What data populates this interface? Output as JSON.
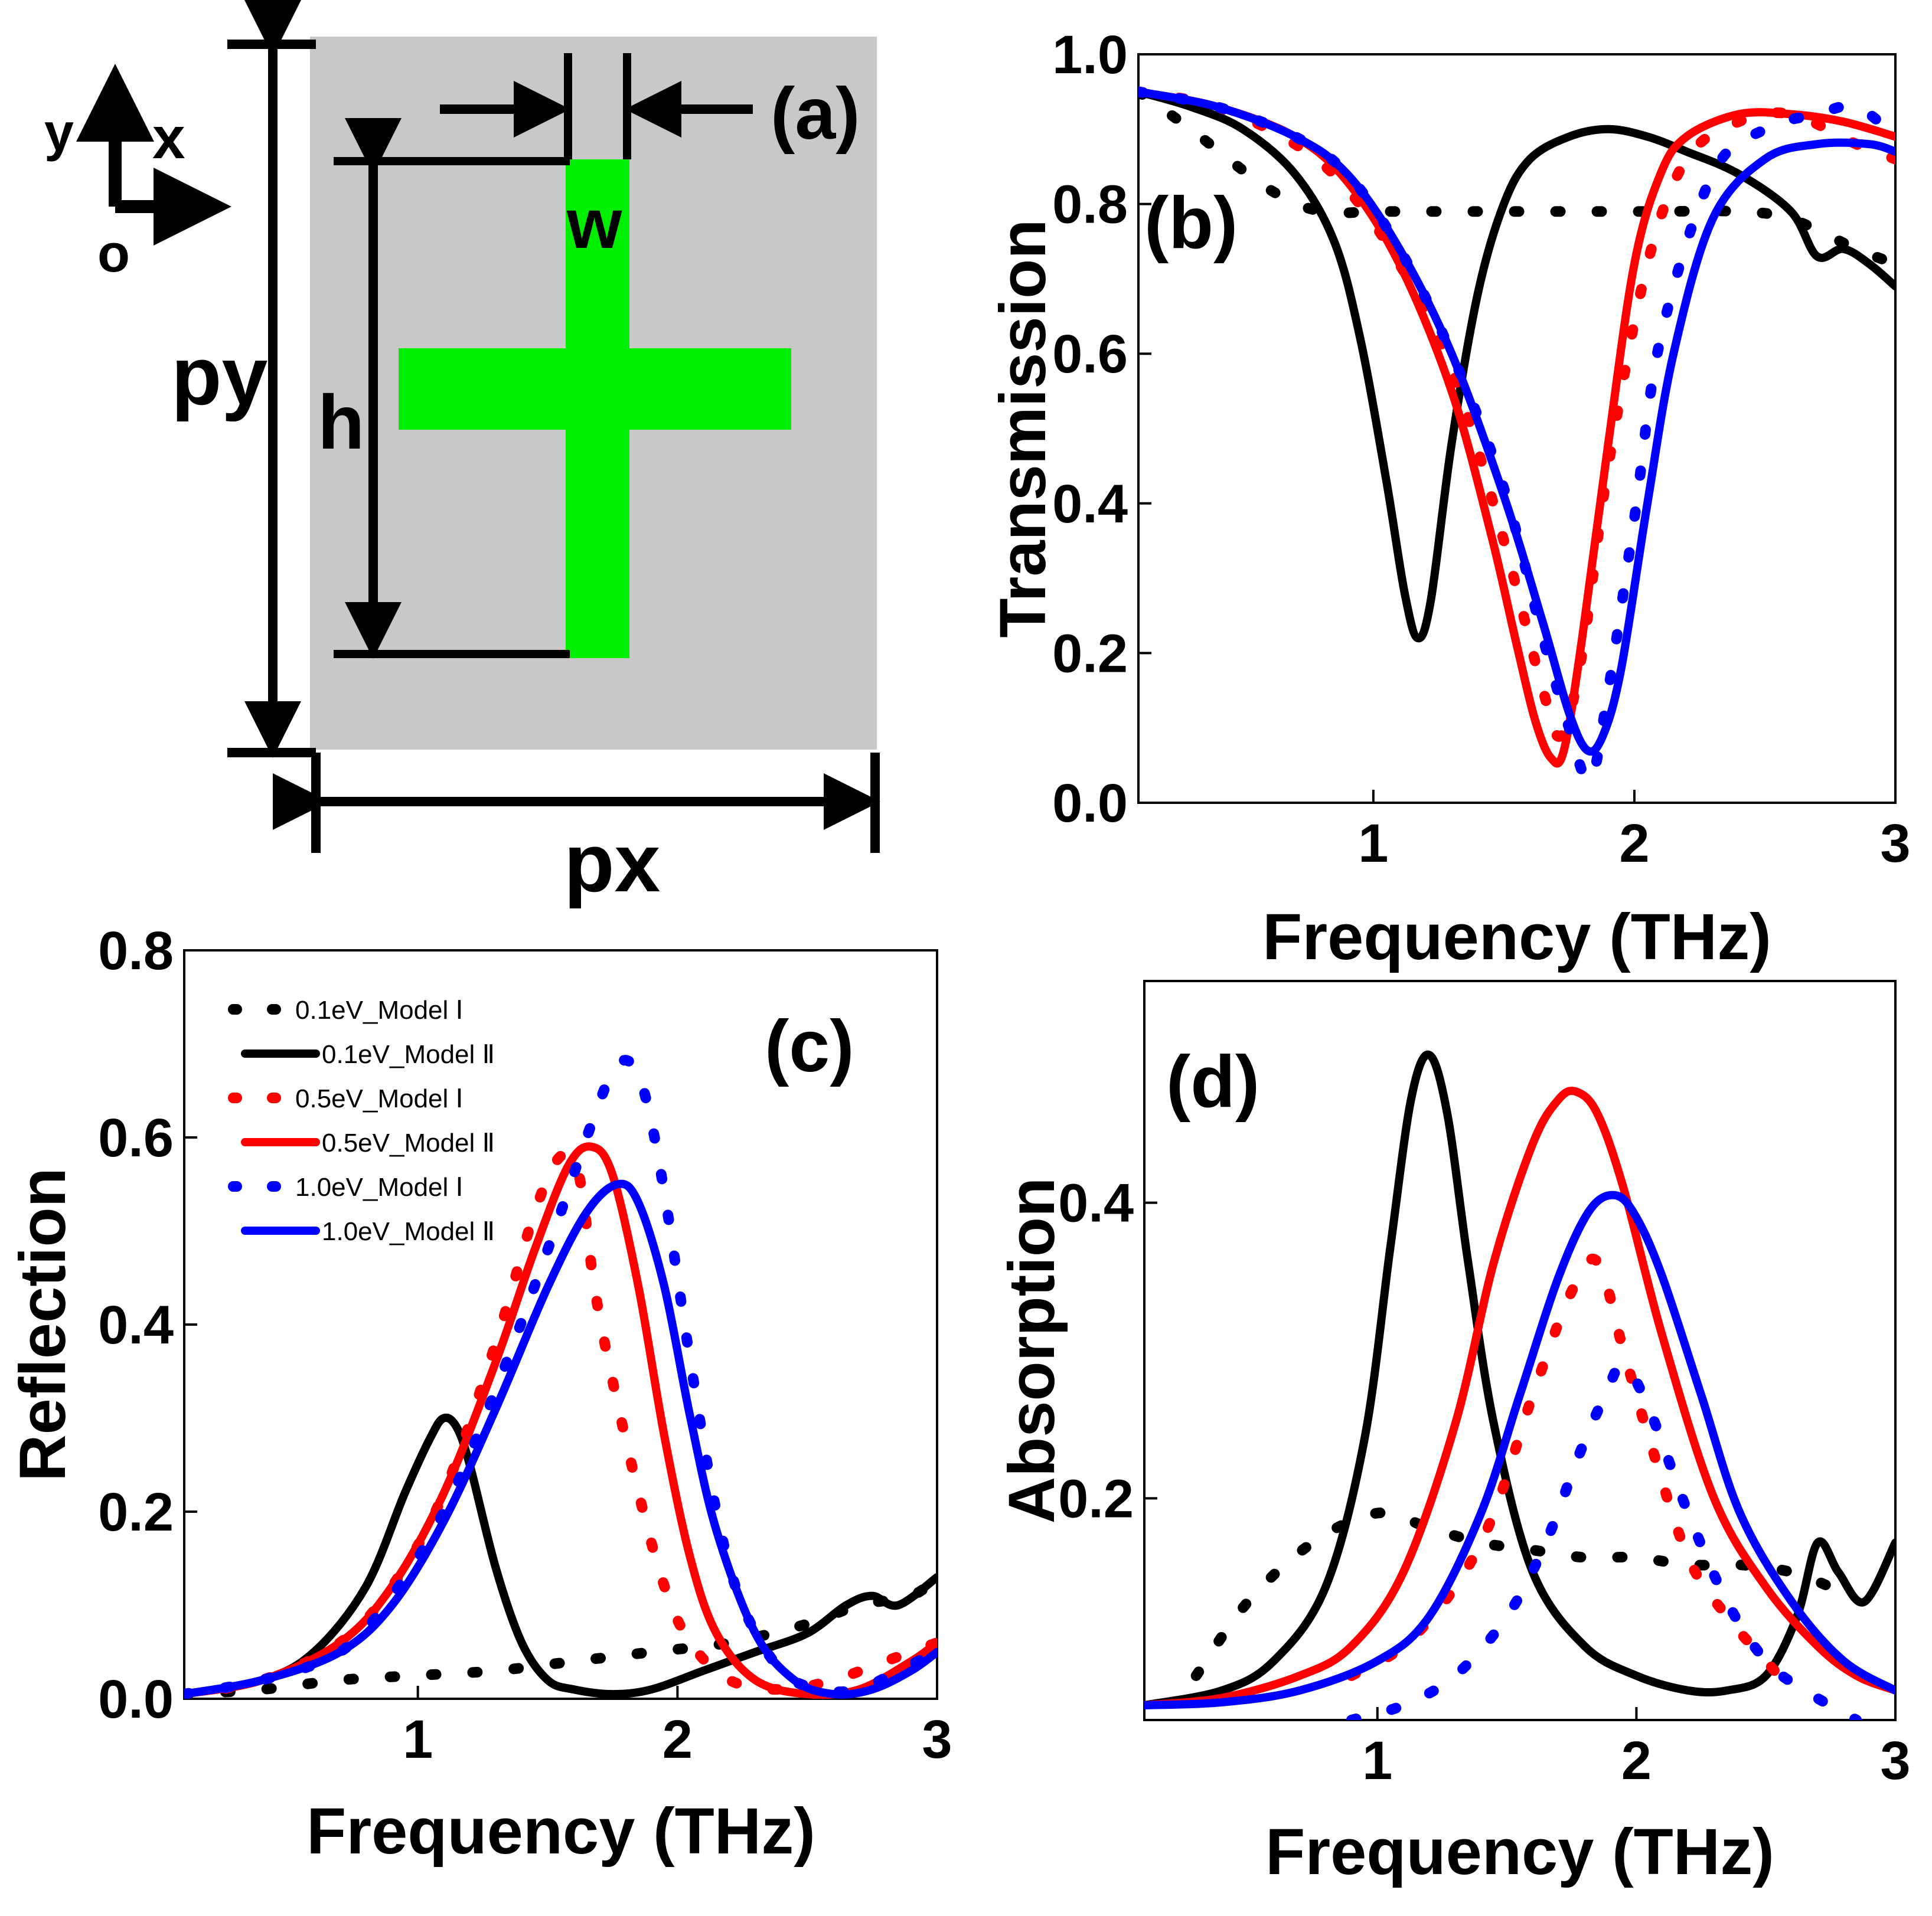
{
  "figure": {
    "panel_a": {
      "label": "(a)",
      "axis_y": "y",
      "axis_x": "x",
      "origin": "o",
      "dim_w": "w",
      "dim_h": "h",
      "dim_py": "py",
      "dim_px": "px",
      "colors": {
        "substrate": "#c8c8c8",
        "cross": "#00ee00"
      }
    }
  },
  "chart_data": [
    {
      "panel": "(b)",
      "type": "line",
      "xlabel": "Frequency (THz)",
      "ylabel": "Transmission",
      "xlim": [
        0.1,
        3.0
      ],
      "ylim": [
        0.0,
        1.0
      ],
      "xticks": [
        "1",
        "2",
        "3"
      ],
      "yticks": [
        "0.0",
        "0.2",
        "0.4",
        "0.6",
        "0.8",
        "1.0"
      ],
      "series": [
        {
          "name": "0.1eV_Model Ⅰ",
          "color": "#000000",
          "style": "dot",
          "x": [
            0.1,
            0.3,
            0.6,
            0.8,
            1.0,
            1.2,
            1.5,
            1.8,
            2.1,
            2.4,
            2.6,
            2.85,
            3.0
          ],
          "y": [
            0.95,
            0.9,
            0.82,
            0.79,
            0.79,
            0.79,
            0.79,
            0.79,
            0.79,
            0.79,
            0.78,
            0.74,
            0.72
          ]
        },
        {
          "name": "0.1eV_Model Ⅱ",
          "color": "#000000",
          "style": "solid",
          "x": [
            0.1,
            0.3,
            0.5,
            0.7,
            0.85,
            0.95,
            1.05,
            1.12,
            1.17,
            1.22,
            1.3,
            1.4,
            1.5,
            1.6,
            1.75,
            1.9,
            2.05,
            2.2,
            2.4,
            2.6,
            2.7,
            2.8,
            2.9,
            3.0
          ],
          "y": [
            0.95,
            0.93,
            0.9,
            0.84,
            0.75,
            0.62,
            0.43,
            0.28,
            0.22,
            0.27,
            0.48,
            0.68,
            0.8,
            0.86,
            0.89,
            0.9,
            0.89,
            0.87,
            0.84,
            0.79,
            0.73,
            0.74,
            0.72,
            0.69
          ]
        },
        {
          "name": "0.5eV_Model Ⅰ",
          "color": "#ff0000",
          "style": "dot",
          "x": [
            0.1,
            0.4,
            0.7,
            0.9,
            1.1,
            1.3,
            1.5,
            1.65,
            1.72,
            1.8,
            1.9,
            2.05,
            2.2,
            2.4,
            2.6,
            2.85,
            3.0
          ],
          "y": [
            0.95,
            0.93,
            0.88,
            0.82,
            0.72,
            0.58,
            0.35,
            0.15,
            0.09,
            0.2,
            0.45,
            0.72,
            0.86,
            0.91,
            0.92,
            0.88,
            0.86
          ]
        },
        {
          "name": "0.5eV_Model Ⅱ",
          "color": "#ff0000",
          "style": "solid",
          "x": [
            0.1,
            0.4,
            0.7,
            0.9,
            1.1,
            1.3,
            1.45,
            1.55,
            1.62,
            1.68,
            1.73,
            1.8,
            1.9,
            2.0,
            2.1,
            2.2,
            2.4,
            2.6,
            2.8,
            3.0
          ],
          "y": [
            0.95,
            0.93,
            0.89,
            0.83,
            0.72,
            0.55,
            0.36,
            0.21,
            0.11,
            0.06,
            0.07,
            0.22,
            0.48,
            0.72,
            0.84,
            0.89,
            0.92,
            0.92,
            0.91,
            0.89
          ]
        },
        {
          "name": "1.0eV_Model Ⅰ",
          "color": "#0000ff",
          "style": "dot",
          "x": [
            0.1,
            0.4,
            0.7,
            0.9,
            1.1,
            1.3,
            1.5,
            1.65,
            1.75,
            1.83,
            1.9,
            2.0,
            2.1,
            2.3,
            2.5,
            2.7,
            2.85,
            3.0
          ],
          "y": [
            0.95,
            0.93,
            0.89,
            0.84,
            0.74,
            0.6,
            0.42,
            0.22,
            0.1,
            0.03,
            0.15,
            0.38,
            0.62,
            0.84,
            0.9,
            0.92,
            0.93,
            0.89
          ]
        },
        {
          "name": "1.0eV_Model Ⅱ",
          "color": "#0000ff",
          "style": "solid",
          "x": [
            0.1,
            0.4,
            0.7,
            0.9,
            1.1,
            1.3,
            1.5,
            1.65,
            1.75,
            1.82,
            1.88,
            1.95,
            2.05,
            2.15,
            2.3,
            2.5,
            2.7,
            2.9,
            3.0
          ],
          "y": [
            0.95,
            0.93,
            0.89,
            0.84,
            0.74,
            0.6,
            0.41,
            0.24,
            0.12,
            0.07,
            0.09,
            0.18,
            0.4,
            0.6,
            0.78,
            0.86,
            0.88,
            0.88,
            0.87
          ]
        }
      ]
    },
    {
      "panel": "(c)",
      "type": "line",
      "xlabel": "Frequency (THz)",
      "ylabel": "Reflection",
      "xlim": [
        0.1,
        3.0
      ],
      "ylim": [
        0.0,
        0.8
      ],
      "xticks": [
        "1",
        "2",
        "3"
      ],
      "yticks": [
        "0.0",
        "0.2",
        "0.4",
        "0.6",
        "0.8"
      ],
      "legend": "top-left",
      "series": [
        {
          "name": "0.1eV_Model Ⅰ",
          "color": "#000000",
          "style": "dot",
          "x": [
            0.1,
            0.4,
            0.7,
            1.0,
            1.3,
            1.6,
            1.9,
            2.2,
            2.5,
            2.7,
            2.9,
            3.0
          ],
          "y": [
            0.005,
            0.01,
            0.02,
            0.025,
            0.03,
            0.04,
            0.05,
            0.06,
            0.08,
            0.1,
            0.11,
            0.13
          ]
        },
        {
          "name": "0.1eV_Model Ⅱ",
          "color": "#000000",
          "style": "solid",
          "x": [
            0.1,
            0.4,
            0.6,
            0.8,
            0.95,
            1.05,
            1.1,
            1.15,
            1.2,
            1.3,
            1.4,
            1.5,
            1.6,
            1.75,
            1.9,
            2.1,
            2.3,
            2.5,
            2.65,
            2.75,
            2.85,
            3.0
          ],
          "y": [
            0.005,
            0.02,
            0.05,
            0.12,
            0.22,
            0.28,
            0.3,
            0.29,
            0.25,
            0.14,
            0.06,
            0.02,
            0.01,
            0.005,
            0.01,
            0.03,
            0.05,
            0.07,
            0.1,
            0.11,
            0.1,
            0.13
          ]
        },
        {
          "name": "0.5eV_Model Ⅰ",
          "color": "#ff0000",
          "style": "dot",
          "x": [
            0.1,
            0.4,
            0.7,
            0.9,
            1.1,
            1.3,
            1.45,
            1.55,
            1.62,
            1.68,
            1.75,
            1.85,
            1.95,
            2.05,
            2.2,
            2.4,
            2.6,
            2.8,
            3.0
          ],
          "y": [
            0.005,
            0.02,
            0.06,
            0.12,
            0.22,
            0.38,
            0.52,
            0.58,
            0.56,
            0.44,
            0.34,
            0.22,
            0.12,
            0.06,
            0.02,
            0.01,
            0.02,
            0.04,
            0.06
          ]
        },
        {
          "name": "0.5eV_Model Ⅱ",
          "color": "#ff0000",
          "style": "solid",
          "x": [
            0.1,
            0.4,
            0.7,
            0.9,
            1.1,
            1.3,
            1.45,
            1.58,
            1.67,
            1.75,
            1.85,
            1.95,
            2.05,
            2.15,
            2.3,
            2.5,
            2.7,
            2.9,
            3.0
          ],
          "y": [
            0.005,
            0.02,
            0.06,
            0.12,
            0.22,
            0.36,
            0.48,
            0.57,
            0.59,
            0.56,
            0.44,
            0.28,
            0.15,
            0.07,
            0.02,
            0.005,
            0.01,
            0.04,
            0.06
          ]
        },
        {
          "name": "1.0eV_Model Ⅰ",
          "color": "#0000ff",
          "style": "dot",
          "x": [
            0.1,
            0.4,
            0.7,
            0.9,
            1.1,
            1.3,
            1.5,
            1.65,
            1.75,
            1.82,
            1.88,
            1.95,
            2.05,
            2.15,
            2.25,
            2.4,
            2.55,
            2.7,
            2.85,
            3.0
          ],
          "y": [
            0.005,
            0.02,
            0.05,
            0.11,
            0.2,
            0.33,
            0.48,
            0.6,
            0.67,
            0.68,
            0.64,
            0.54,
            0.36,
            0.2,
            0.1,
            0.03,
            0.01,
            0.01,
            0.03,
            0.05
          ]
        },
        {
          "name": "1.0eV_Model Ⅱ",
          "color": "#0000ff",
          "style": "solid",
          "x": [
            0.1,
            0.4,
            0.7,
            0.9,
            1.1,
            1.3,
            1.5,
            1.65,
            1.77,
            1.85,
            1.95,
            2.05,
            2.15,
            2.3,
            2.45,
            2.6,
            2.75,
            2.9,
            3.0
          ],
          "y": [
            0.005,
            0.02,
            0.05,
            0.1,
            0.19,
            0.31,
            0.44,
            0.52,
            0.55,
            0.53,
            0.44,
            0.3,
            0.18,
            0.07,
            0.02,
            0.005,
            0.01,
            0.03,
            0.05
          ]
        }
      ]
    },
    {
      "panel": "(d)",
      "type": "line",
      "xlabel": "Frequency (THz)",
      "ylabel": "Absorption",
      "xlim": [
        0.1,
        3.0
      ],
      "ylim": [
        0.05,
        0.55
      ],
      "xticks": [
        "1",
        "2",
        "3"
      ],
      "yticks": [
        "0.2",
        "0.4"
      ],
      "series": [
        {
          "name": "0.1eV_Model Ⅰ",
          "color": "#000000",
          "style": "dot",
          "x": [
            0.3,
            0.5,
            0.75,
            1.0,
            1.2,
            1.4,
            1.6,
            1.8,
            2.0,
            2.2,
            2.4,
            2.6,
            2.75
          ],
          "y": [
            0.08,
            0.13,
            0.17,
            0.19,
            0.18,
            0.17,
            0.165,
            0.16,
            0.16,
            0.155,
            0.155,
            0.15,
            0.14
          ]
        },
        {
          "name": "0.1eV_Model Ⅱ",
          "color": "#000000",
          "style": "solid",
          "x": [
            0.1,
            0.4,
            0.6,
            0.8,
            0.95,
            1.05,
            1.13,
            1.2,
            1.27,
            1.35,
            1.45,
            1.6,
            1.8,
            2.0,
            2.2,
            2.35,
            2.5,
            2.62,
            2.7,
            2.78,
            2.88,
            3.0
          ],
          "y": [
            0.06,
            0.07,
            0.09,
            0.14,
            0.24,
            0.37,
            0.47,
            0.5,
            0.46,
            0.36,
            0.25,
            0.15,
            0.1,
            0.08,
            0.07,
            0.07,
            0.08,
            0.12,
            0.17,
            0.15,
            0.13,
            0.17
          ]
        },
        {
          "name": "0.5eV_Model Ⅰ",
          "color": "#ff0000",
          "style": "dot",
          "x": [
            0.9,
            1.1,
            1.3,
            1.45,
            1.6,
            1.75,
            1.85,
            1.95,
            2.05,
            2.2,
            2.35,
            2.5,
            2.6
          ],
          "y": [
            0.08,
            0.1,
            0.14,
            0.19,
            0.27,
            0.34,
            0.36,
            0.3,
            0.24,
            0.16,
            0.12,
            0.09,
            0.07
          ]
        },
        {
          "name": "0.5eV_Model Ⅱ",
          "color": "#ff0000",
          "style": "solid",
          "x": [
            0.1,
            0.4,
            0.7,
            0.9,
            1.1,
            1.3,
            1.45,
            1.6,
            1.7,
            1.77,
            1.85,
            1.95,
            2.1,
            2.3,
            2.5,
            2.7,
            2.85,
            3.0
          ],
          "y": [
            0.06,
            0.065,
            0.08,
            0.1,
            0.15,
            0.25,
            0.36,
            0.44,
            0.47,
            0.475,
            0.46,
            0.41,
            0.31,
            0.2,
            0.14,
            0.1,
            0.08,
            0.07
          ]
        },
        {
          "name": "1.0eV_Model Ⅰ",
          "color": "#0000ff",
          "style": "dot",
          "x": [
            0.9,
            1.1,
            1.3,
            1.5,
            1.65,
            1.78,
            1.88,
            1.95,
            2.05,
            2.2,
            2.35,
            2.5,
            2.65,
            2.85
          ],
          "y": [
            0.05,
            0.06,
            0.08,
            0.12,
            0.17,
            0.23,
            0.27,
            0.29,
            0.26,
            0.19,
            0.13,
            0.09,
            0.07,
            0.05
          ]
        },
        {
          "name": "1.0eV_Model Ⅱ",
          "color": "#0000ff",
          "style": "solid",
          "x": [
            0.1,
            0.4,
            0.7,
            1.0,
            1.2,
            1.4,
            1.55,
            1.7,
            1.82,
            1.92,
            2.0,
            2.1,
            2.25,
            2.4,
            2.6,
            2.8,
            3.0
          ],
          "y": [
            0.06,
            0.062,
            0.07,
            0.09,
            0.12,
            0.19,
            0.27,
            0.35,
            0.395,
            0.405,
            0.39,
            0.35,
            0.27,
            0.19,
            0.13,
            0.09,
            0.07
          ]
        }
      ]
    }
  ]
}
